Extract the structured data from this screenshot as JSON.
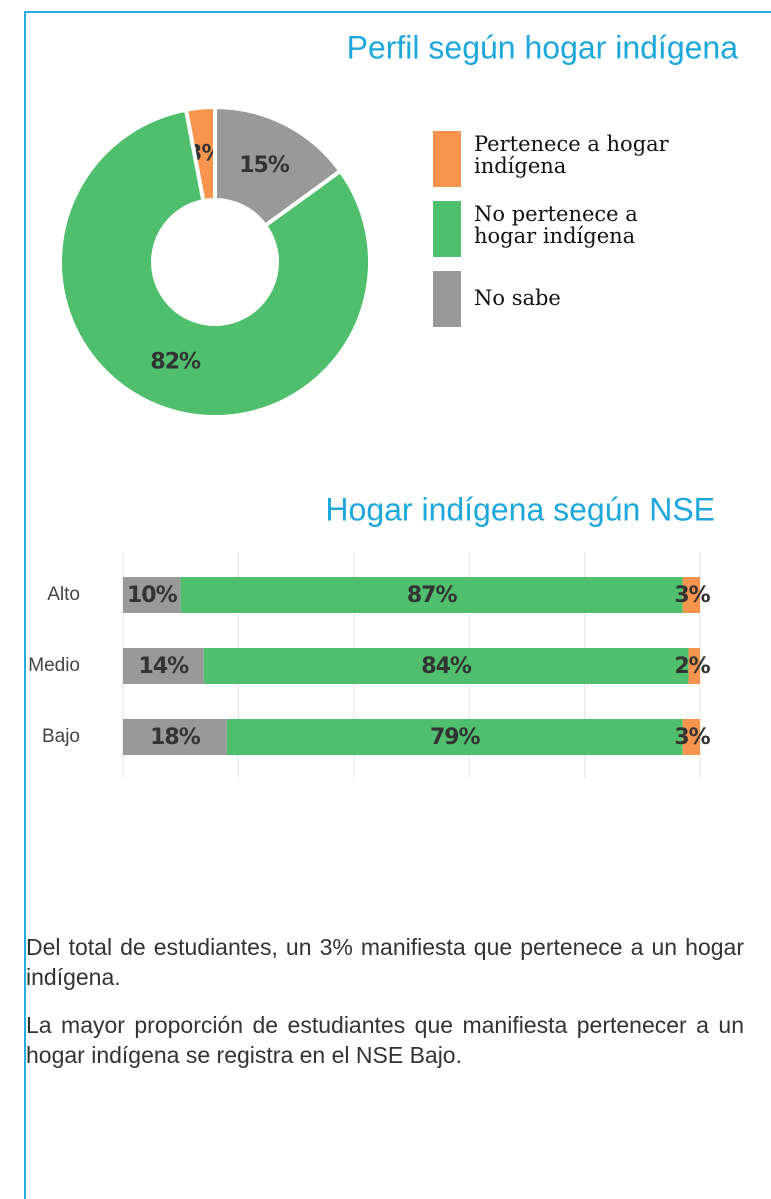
{
  "chart_data": [
    {
      "type": "pie",
      "title": "Perfil según hogar indígena",
      "series": [
        {
          "name": "Pertenece a hogar indígena",
          "color": "#f7954f",
          "values": [
            3
          ],
          "value_labels": [
            "3%"
          ]
        },
        {
          "name": "No pertenece a hogar indígena",
          "color": "#4fbf6d",
          "values": [
            82
          ],
          "value_labels": [
            "82%"
          ]
        },
        {
          "name": "No sabe",
          "color": "#999999",
          "values": [
            15
          ],
          "value_labels": [
            "15%"
          ]
        }
      ]
    },
    {
      "type": "stacked_barh",
      "title": "Hogar indígena según NSE",
      "categories": [
        "Alto",
        "Medio",
        "Bajo"
      ],
      "series": [
        {
          "name": "No sabe",
          "color": "#999999",
          "values": [
            10,
            14,
            18
          ],
          "value_labels": [
            "10%",
            "14%",
            "18%"
          ]
        },
        {
          "name": "No pertenece a hogar indígena",
          "color": "#4fbf6d",
          "values": [
            87,
            84,
            79
          ],
          "value_labels": [
            "87%",
            "84%",
            "79%"
          ]
        },
        {
          "name": "Pertenece a hogar indígena",
          "color": "#f7954f",
          "values": [
            3,
            2,
            3
          ],
          "value_labels": [
            "3%",
            "2%",
            "3%"
          ]
        }
      ],
      "xlim": [
        0,
        100
      ],
      "xticks": [
        0,
        20,
        40,
        60,
        80,
        100
      ],
      "grid": true
    }
  ],
  "text": [
    "Del total de estudiantes, un 3% manifiesta que pertenece a un hogar indígena.",
    "La mayor proporción de estudiantes que manifiesta pertenecer a un hogar indígena se registra en el NSE Bajo."
  ]
}
